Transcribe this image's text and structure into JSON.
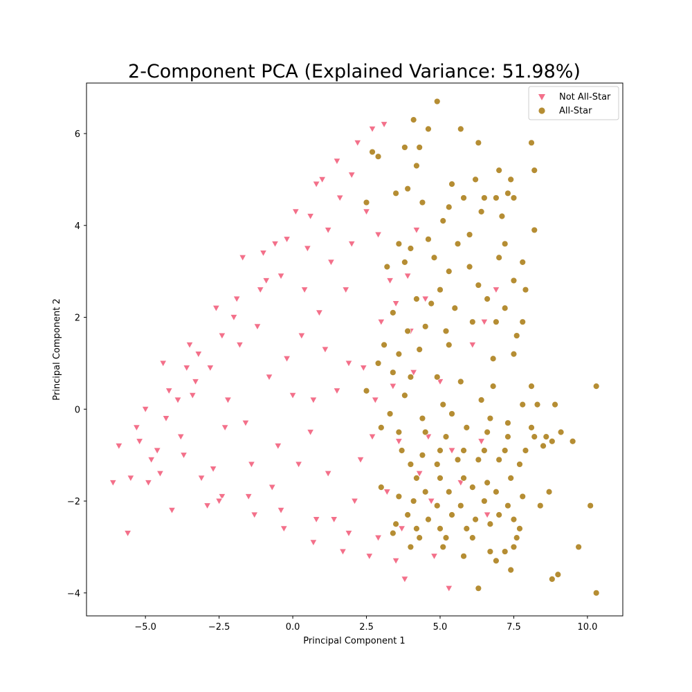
{
  "chart_data": {
    "type": "scatter",
    "title": "2-Component PCA (Explained Variance: 51.98%)",
    "xlabel": "Principal Component 1",
    "ylabel": "Principal Component 2",
    "xlim": [
      -7.0,
      11.2
    ],
    "ylim": [
      -4.5,
      7.1
    ],
    "xticks": [
      -5.0,
      -2.5,
      0.0,
      2.5,
      5.0,
      7.5,
      10.0
    ],
    "xtick_labels": [
      "−5.0",
      "−2.5",
      "0.0",
      "2.5",
      "5.0",
      "7.5",
      "10.0"
    ],
    "yticks": [
      -4,
      -2,
      0,
      2,
      4,
      6
    ],
    "ytick_labels": [
      "−4",
      "−2",
      "0",
      "2",
      "4",
      "6"
    ],
    "grid": false,
    "legend_position": "top-right",
    "series": [
      {
        "name": "Not All-Star",
        "marker": "triangle-down",
        "color": "#f3708a",
        "points": [
          [
            -6.1,
            -1.6
          ],
          [
            -5.6,
            -2.7
          ],
          [
            -5.9,
            -0.8
          ],
          [
            -5.5,
            -1.5
          ],
          [
            -5.3,
            -0.4
          ],
          [
            -5.0,
            0.0
          ],
          [
            -4.9,
            -1.6
          ],
          [
            -4.6,
            -0.9
          ],
          [
            -4.4,
            1.0
          ],
          [
            -4.1,
            -2.2
          ],
          [
            -4.3,
            -0.2
          ],
          [
            -3.9,
            0.2
          ],
          [
            -3.6,
            0.9
          ],
          [
            -3.2,
            1.2
          ],
          [
            -2.9,
            -2.1
          ],
          [
            -2.4,
            1.6
          ],
          [
            -2.4,
            -1.9
          ],
          [
            -2.0,
            2.0
          ],
          [
            -1.7,
            3.3
          ],
          [
            -1.1,
            2.6
          ],
          [
            -1.0,
            3.4
          ],
          [
            -0.6,
            3.6
          ],
          [
            -0.2,
            3.7
          ],
          [
            0.1,
            4.3
          ],
          [
            0.8,
            4.9
          ],
          [
            1.5,
            5.4
          ],
          [
            2.2,
            5.8
          ],
          [
            2.7,
            6.1
          ],
          [
            3.1,
            6.2
          ],
          [
            1.0,
            5.0
          ],
          [
            2.0,
            5.1
          ],
          [
            0.6,
            4.2
          ],
          [
            1.6,
            4.6
          ],
          [
            -0.4,
            2.9
          ],
          [
            0.5,
            3.5
          ],
          [
            1.2,
            3.9
          ],
          [
            2.5,
            4.3
          ],
          [
            -3.1,
            -1.5
          ],
          [
            -1.3,
            -2.3
          ],
          [
            -0.3,
            -2.6
          ],
          [
            0.7,
            -2.9
          ],
          [
            1.7,
            -3.1
          ],
          [
            2.6,
            -3.2
          ],
          [
            3.5,
            -3.3
          ],
          [
            4.8,
            -3.2
          ],
          [
            5.3,
            -3.9
          ],
          [
            3.8,
            -3.7
          ],
          [
            4.7,
            -2.0
          ],
          [
            3.3,
            2.8
          ],
          [
            3.9,
            2.9
          ],
          [
            4.2,
            3.9
          ],
          [
            4.5,
            2.4
          ],
          [
            4.1,
            0.8
          ],
          [
            3.6,
            -0.7
          ],
          [
            4.6,
            -0.6
          ],
          [
            5.0,
            0.6
          ],
          [
            5.4,
            -0.9
          ],
          [
            5.7,
            -1.6
          ],
          [
            6.1,
            1.4
          ],
          [
            6.5,
            1.9
          ],
          [
            6.4,
            -0.7
          ],
          [
            6.9,
            2.6
          ],
          [
            6.6,
            -2.3
          ],
          [
            -3.7,
            -1.0
          ],
          [
            -3.4,
            0.3
          ],
          [
            -2.8,
            0.9
          ],
          [
            -2.3,
            -0.4
          ],
          [
            -1.8,
            1.4
          ],
          [
            -1.4,
            -1.2
          ],
          [
            -0.8,
            0.7
          ],
          [
            -0.5,
            -0.8
          ],
          [
            0.0,
            0.3
          ],
          [
            0.3,
            1.6
          ],
          [
            0.6,
            -0.5
          ],
          [
            0.9,
            2.1
          ],
          [
            1.2,
            -1.4
          ],
          [
            1.5,
            0.4
          ],
          [
            1.8,
            2.6
          ],
          [
            2.1,
            -2.0
          ],
          [
            2.4,
            0.9
          ],
          [
            2.7,
            -0.6
          ],
          [
            3.0,
            1.9
          ],
          [
            3.2,
            -1.8
          ],
          [
            -4.8,
            -1.1
          ],
          [
            -4.2,
            0.4
          ],
          [
            -3.8,
            -0.6
          ],
          [
            -3.3,
            0.6
          ],
          [
            -2.7,
            -1.3
          ],
          [
            -2.2,
            0.2
          ],
          [
            -1.6,
            -0.3
          ],
          [
            -1.2,
            1.8
          ],
          [
            -0.7,
            -1.7
          ],
          [
            -0.2,
            1.1
          ],
          [
            0.2,
            -1.2
          ],
          [
            0.7,
            0.2
          ],
          [
            1.1,
            1.3
          ],
          [
            1.4,
            -2.4
          ],
          [
            1.9,
            1.0
          ],
          [
            2.3,
            -1.1
          ],
          [
            2.8,
            0.2
          ],
          [
            3.4,
            0.5
          ],
          [
            -5.2,
            -0.7
          ],
          [
            -4.5,
            -1.4
          ],
          [
            -3.5,
            1.4
          ],
          [
            -2.6,
            2.2
          ],
          [
            -1.9,
            2.4
          ],
          [
            -0.9,
            2.8
          ],
          [
            0.4,
            2.6
          ],
          [
            1.3,
            3.2
          ],
          [
            2.0,
            3.6
          ],
          [
            2.9,
            3.8
          ],
          [
            -2.5,
            -2.0
          ],
          [
            -1.5,
            -1.9
          ],
          [
            -0.4,
            -2.2
          ],
          [
            0.8,
            -2.4
          ],
          [
            1.9,
            -2.7
          ],
          [
            2.9,
            -2.8
          ],
          [
            3.7,
            -2.6
          ],
          [
            4.3,
            -1.4
          ],
          [
            4.0,
            1.7
          ],
          [
            3.5,
            2.3
          ]
        ]
      },
      {
        "name": "All-Star",
        "marker": "circle",
        "color": "#b58d33",
        "points": [
          [
            4.9,
            6.7
          ],
          [
            4.1,
            6.3
          ],
          [
            4.6,
            6.1
          ],
          [
            5.7,
            6.1
          ],
          [
            2.7,
            5.6
          ],
          [
            2.9,
            5.5
          ],
          [
            3.8,
            5.7
          ],
          [
            4.3,
            5.7
          ],
          [
            6.3,
            5.8
          ],
          [
            8.1,
            5.8
          ],
          [
            8.2,
            5.2
          ],
          [
            7.0,
            5.2
          ],
          [
            4.2,
            5.3
          ],
          [
            3.9,
            4.8
          ],
          [
            5.4,
            4.9
          ],
          [
            6.2,
            5.0
          ],
          [
            7.4,
            5.0
          ],
          [
            7.3,
            4.7
          ],
          [
            7.5,
            4.6
          ],
          [
            6.9,
            4.6
          ],
          [
            6.5,
            4.6
          ],
          [
            5.8,
            4.6
          ],
          [
            5.3,
            4.4
          ],
          [
            4.4,
            4.5
          ],
          [
            3.5,
            4.7
          ],
          [
            2.5,
            4.5
          ],
          [
            5.1,
            4.1
          ],
          [
            6.0,
            3.8
          ],
          [
            6.4,
            4.3
          ],
          [
            7.1,
            4.2
          ],
          [
            8.2,
            3.9
          ],
          [
            5.6,
            3.6
          ],
          [
            4.6,
            3.7
          ],
          [
            3.6,
            3.6
          ],
          [
            4.0,
            3.5
          ],
          [
            4.8,
            3.3
          ],
          [
            5.3,
            3.0
          ],
          [
            6.0,
            3.1
          ],
          [
            7.0,
            3.3
          ],
          [
            7.2,
            3.6
          ],
          [
            7.8,
            3.2
          ],
          [
            3.2,
            3.1
          ],
          [
            3.8,
            3.2
          ],
          [
            5.0,
            2.6
          ],
          [
            6.3,
            2.7
          ],
          [
            7.5,
            2.8
          ],
          [
            7.9,
            2.6
          ],
          [
            4.2,
            2.4
          ],
          [
            4.7,
            2.3
          ],
          [
            5.5,
            2.2
          ],
          [
            6.6,
            2.4
          ],
          [
            7.2,
            2.2
          ],
          [
            7.8,
            1.9
          ],
          [
            3.4,
            2.1
          ],
          [
            3.9,
            1.7
          ],
          [
            4.5,
            1.8
          ],
          [
            5.2,
            1.7
          ],
          [
            6.1,
            1.9
          ],
          [
            6.9,
            1.9
          ],
          [
            7.6,
            1.6
          ],
          [
            3.1,
            1.4
          ],
          [
            3.6,
            1.2
          ],
          [
            4.3,
            1.3
          ],
          [
            5.3,
            1.4
          ],
          [
            6.8,
            1.1
          ],
          [
            7.5,
            1.2
          ],
          [
            2.9,
            1.0
          ],
          [
            3.4,
            0.8
          ],
          [
            4.0,
            0.7
          ],
          [
            4.9,
            0.7
          ],
          [
            5.7,
            0.6
          ],
          [
            6.8,
            0.5
          ],
          [
            8.1,
            0.5
          ],
          [
            10.3,
            0.5
          ],
          [
            2.5,
            0.4
          ],
          [
            3.8,
            0.3
          ],
          [
            5.1,
            0.1
          ],
          [
            6.4,
            0.2
          ],
          [
            7.8,
            0.1
          ],
          [
            8.3,
            0.1
          ],
          [
            8.9,
            0.1
          ],
          [
            3.3,
            -0.1
          ],
          [
            4.4,
            -0.2
          ],
          [
            5.4,
            -0.1
          ],
          [
            6.7,
            -0.2
          ],
          [
            7.3,
            -0.3
          ],
          [
            8.1,
            -0.4
          ],
          [
            3.0,
            -0.4
          ],
          [
            3.6,
            -0.5
          ],
          [
            4.5,
            -0.5
          ],
          [
            5.2,
            -0.6
          ],
          [
            5.9,
            -0.4
          ],
          [
            6.6,
            -0.5
          ],
          [
            7.3,
            -0.6
          ],
          [
            8.2,
            -0.6
          ],
          [
            8.6,
            -0.6
          ],
          [
            9.1,
            -0.5
          ],
          [
            9.5,
            -0.7
          ],
          [
            3.7,
            -0.9
          ],
          [
            4.4,
            -1.0
          ],
          [
            5.0,
            -0.9
          ],
          [
            5.8,
            -0.9
          ],
          [
            6.5,
            -0.9
          ],
          [
            7.2,
            -0.9
          ],
          [
            7.9,
            -0.9
          ],
          [
            8.8,
            -0.7
          ],
          [
            4.0,
            -1.2
          ],
          [
            4.9,
            -1.2
          ],
          [
            5.6,
            -1.1
          ],
          [
            6.3,
            -1.1
          ],
          [
            7.0,
            -1.1
          ],
          [
            7.7,
            -1.2
          ],
          [
            8.5,
            -0.8
          ],
          [
            4.2,
            -1.5
          ],
          [
            5.0,
            -1.5
          ],
          [
            5.8,
            -1.5
          ],
          [
            6.6,
            -1.6
          ],
          [
            7.4,
            -1.5
          ],
          [
            3.0,
            -1.7
          ],
          [
            4.5,
            -1.8
          ],
          [
            5.3,
            -1.8
          ],
          [
            6.1,
            -1.7
          ],
          [
            6.9,
            -1.8
          ],
          [
            7.8,
            -1.9
          ],
          [
            3.6,
            -1.9
          ],
          [
            4.1,
            -2.0
          ],
          [
            4.9,
            -2.1
          ],
          [
            5.7,
            -2.1
          ],
          [
            6.5,
            -2.0
          ],
          [
            7.3,
            -2.1
          ],
          [
            8.4,
            -2.1
          ],
          [
            8.7,
            -1.8
          ],
          [
            10.1,
            -2.1
          ],
          [
            3.9,
            -2.3
          ],
          [
            4.6,
            -2.4
          ],
          [
            5.4,
            -2.3
          ],
          [
            6.2,
            -2.4
          ],
          [
            7.0,
            -2.3
          ],
          [
            7.5,
            -2.4
          ],
          [
            3.5,
            -2.5
          ],
          [
            4.2,
            -2.6
          ],
          [
            5.0,
            -2.6
          ],
          [
            5.9,
            -2.6
          ],
          [
            6.7,
            -2.5
          ],
          [
            7.7,
            -2.6
          ],
          [
            3.4,
            -2.7
          ],
          [
            4.3,
            -2.8
          ],
          [
            5.2,
            -2.8
          ],
          [
            6.1,
            -2.8
          ],
          [
            7.6,
            -2.8
          ],
          [
            4.0,
            -3.0
          ],
          [
            5.1,
            -3.0
          ],
          [
            5.8,
            -3.2
          ],
          [
            6.7,
            -3.1
          ],
          [
            7.2,
            -3.1
          ],
          [
            7.5,
            -3.0
          ],
          [
            9.7,
            -3.0
          ],
          [
            6.9,
            -3.3
          ],
          [
            7.4,
            -3.5
          ],
          [
            8.8,
            -3.7
          ],
          [
            9.0,
            -3.6
          ],
          [
            6.3,
            -3.9
          ],
          [
            10.3,
            -4.0
          ]
        ]
      }
    ]
  }
}
